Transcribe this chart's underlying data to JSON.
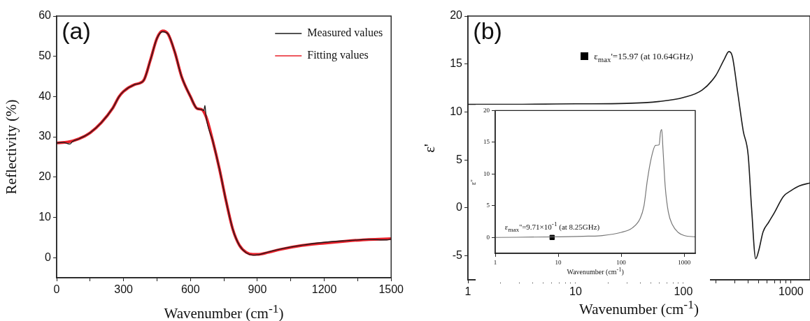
{
  "chart_data": [
    {
      "type": "line",
      "xlabel": "Wavenumber (cm$^{-1}$)",
      "ylabel": "Reflectivity (%)",
      "annotations": [
        "(a)"
      ],
      "xlim": [
        0,
        1500
      ],
      "xticks": [
        0,
        {
          "value": 150,
          "label": null
        },
        300,
        {
          "value": 450,
          "label": null
        },
        600,
        {
          "value": 750,
          "label": null
        },
        900,
        {
          "value": 1050,
          "label": null
        },
        1200,
        {
          "value": 1350,
          "label": null
        },
        1500
      ],
      "ylim": [
        -5,
        60
      ],
      "yticks": [
        0,
        10,
        20,
        30,
        40,
        50,
        60
      ],
      "grid": false,
      "legend": "top right",
      "marker": "none",
      "line_style": "solid",
      "series": [
        {
          "name": "Measured values",
          "color": "#1a1a1a",
          "x": [
            0,
            30,
            60,
            70,
            100,
            150,
            200,
            250,
            280,
            300,
            350,
            390,
            420,
            450,
            475,
            500,
            530,
            560,
            600,
            630,
            650,
            660,
            665,
            670,
            700,
            730,
            760,
            790,
            820,
            850,
            880,
            900,
            950,
            1000,
            1100,
            1200,
            1300,
            1400,
            1480,
            1500
          ],
          "values": [
            28.5,
            28.6,
            28.2,
            28.8,
            29.5,
            31,
            33.5,
            37,
            40,
            41.3,
            43,
            44,
            49,
            54.5,
            56.1,
            55.5,
            51,
            45,
            40,
            37,
            36.8,
            36.5,
            37.8,
            35,
            29,
            22,
            14,
            7,
            3,
            1.2,
            0.6,
            0.7,
            1.4,
            2.1,
            3.1,
            3.8,
            4.2,
            4.5,
            4.4,
            4.6
          ]
        },
        {
          "name": "Fitting values",
          "color": "#e8202a",
          "x": [
            0,
            50,
            100,
            150,
            200,
            250,
            280,
            300,
            350,
            390,
            420,
            450,
            475,
            500,
            530,
            560,
            600,
            630,
            650,
            670,
            700,
            730,
            760,
            790,
            820,
            850,
            880,
            900,
            950,
            1000,
            1100,
            1200,
            1300,
            1400,
            1500
          ],
          "values": [
            28.5,
            28.7,
            29.5,
            31,
            33.5,
            37,
            40,
            41.3,
            43,
            44,
            49,
            54.5,
            56.3,
            55.5,
            51,
            45,
            40,
            37,
            36.8,
            35,
            29,
            22,
            14,
            7,
            3,
            1.3,
            0.8,
            0.8,
            1.3,
            2,
            3,
            3.6,
            4.1,
            4.5,
            4.7
          ]
        }
      ]
    },
    {
      "type": "line",
      "xlabel": "Wavenumber (cm$^{-1}$)",
      "ylabel": "ε'",
      "annotations": [
        "(b)",
        "ε$_{max}$'=15.97 (at 10.64GHz)"
      ],
      "log": "x",
      "xlim": [
        1,
        1500
      ],
      "xticks": [
        1,
        {
          "value": 2,
          "label": null
        },
        {
          "value": 3,
          "label": null
        },
        {
          "value": 4,
          "label": null
        },
        {
          "value": 5,
          "label": null
        },
        {
          "value": 6,
          "label": null
        },
        {
          "value": 7,
          "label": null
        },
        {
          "value": 8,
          "label": null
        },
        {
          "value": 9,
          "label": null
        },
        10,
        {
          "value": 20,
          "label": null
        },
        {
          "value": 30,
          "label": null
        },
        {
          "value": 40,
          "label": null
        },
        {
          "value": 50,
          "label": null
        },
        {
          "value": 60,
          "label": null
        },
        {
          "value": 70,
          "label": null
        },
        {
          "value": 80,
          "label": null
        },
        {
          "value": 90,
          "label": null
        },
        100,
        {
          "value": 200,
          "label": null
        },
        {
          "value": 300,
          "label": null
        },
        {
          "value": 400,
          "label": null
        },
        {
          "value": 500,
          "label": null
        },
        {
          "value": 600,
          "label": null
        },
        {
          "value": 700,
          "label": null
        },
        {
          "value": 800,
          "label": null
        },
        {
          "value": 900,
          "label": null
        },
        1000
      ],
      "ylim": [
        -7.5,
        20
      ],
      "yticks": [
        -5,
        0,
        5,
        10,
        15,
        20
      ],
      "grid": false,
      "marker": "none",
      "line_style": "solid",
      "series": [
        {
          "color": "#1a1a1a",
          "x": [
            1,
            3,
            10,
            30,
            60,
            100,
            150,
            200,
            240,
            265,
            285,
            320,
            360,
            400,
            430,
            470,
            500,
            550,
            620,
            700,
            850,
            1000,
            1200,
            1500
          ],
          "values": [
            10.8,
            10.8,
            10.85,
            10.9,
            11.1,
            11.5,
            12.3,
            13.8,
            15.5,
            16.3,
            15.8,
            12,
            8,
            5.5,
            0,
            -5.3,
            -4.5,
            -2.5,
            -1.5,
            -0.5,
            1.2,
            1.8,
            2.3,
            2.6
          ]
        }
      ]
    },
    {
      "type": "line",
      "xlabel": "Wavenumber (cm$^{-1}$)",
      "ylabel": "ε''",
      "annotations": [
        {
          "text": "ε$_{max}$''=9.71×10$^{-1}$ (at 8.25GHz)",
          "x": 8,
          "y": 0
        }
      ],
      "log": "x",
      "xlim": [
        1,
        1500
      ],
      "xticks": [
        1,
        10,
        100,
        1000
      ],
      "ylim": [
        -2.5,
        20
      ],
      "yticks": [
        0,
        5,
        10,
        15,
        20
      ],
      "grid": false,
      "line_style": "solid",
      "series": [
        {
          "color": "#777777",
          "marker": "none",
          "x": [
            1,
            10,
            30,
            50,
            100,
            150,
            200,
            230,
            260,
            300,
            350,
            400,
            420,
            440,
            460,
            500,
            560,
            650,
            800,
            1000,
            1500
          ],
          "values": [
            0,
            0.1,
            0.2,
            0.3,
            0.8,
            1.5,
            3,
            5,
            9,
            12.5,
            14.5,
            14.6,
            16.5,
            17,
            14,
            8,
            4,
            2,
            0.8,
            0.3,
            0.1
          ]
        },
        {
          "type": "scatter",
          "color": "#000000",
          "marker": "square",
          "x": [
            8
          ],
          "values": [
            0
          ]
        }
      ]
    }
  ]
}
